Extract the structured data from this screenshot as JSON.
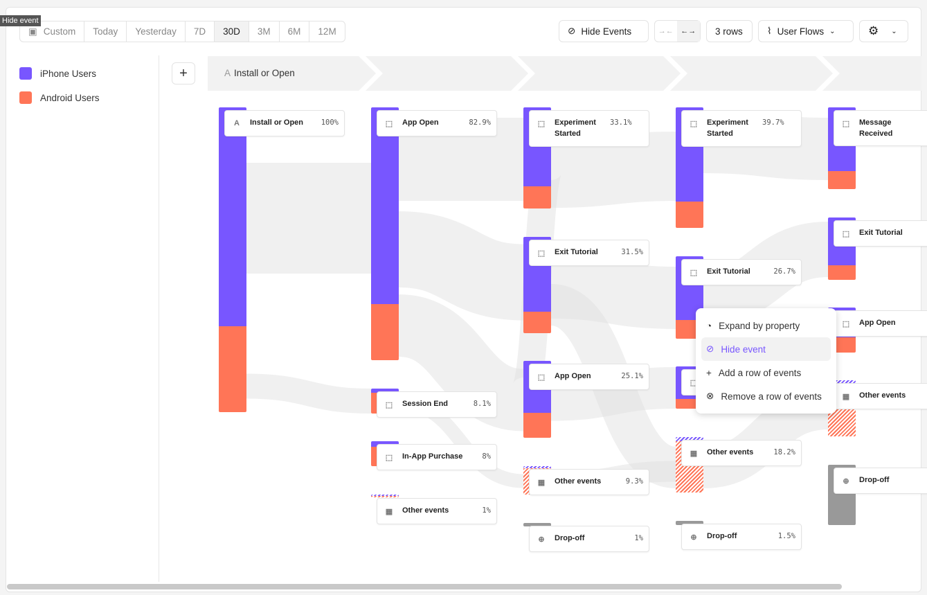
{
  "tooltip": "Hide event",
  "date_range": {
    "options": [
      "Custom",
      "Today",
      "Yesterday",
      "7D",
      "30D",
      "3M",
      "6M",
      "12M"
    ],
    "selected": "30D"
  },
  "toolbar": {
    "hide_events": "Hide Events",
    "rows": "3 rows",
    "view": "User Flows"
  },
  "legend": [
    {
      "label": "iPhone Users",
      "color": "#7856ff"
    },
    {
      "label": "Android Users",
      "color": "#ff7557"
    }
  ],
  "step": {
    "letter": "A",
    "label": "Install or Open"
  },
  "colors": {
    "iphone": "#7856ff",
    "android": "#ff7557",
    "dropoff": "#999999",
    "link": "#dddddd"
  },
  "nodes": [
    {
      "label": "Install or Open",
      "pct": "100%",
      "icon": "letter-a"
    },
    {
      "label": "App Open",
      "pct": "82.9%",
      "icon": "cursor"
    },
    {
      "label": "Session End",
      "pct": "8.1%",
      "icon": "cursor"
    },
    {
      "label": "In-App Purchase",
      "pct": "8%",
      "icon": "cursor"
    },
    {
      "label": "Other events",
      "pct": "1%",
      "icon": "grid"
    },
    {
      "label": "Experiment Started",
      "pct": "33.1%",
      "icon": "cursor"
    },
    {
      "label": "Exit Tutorial",
      "pct": "31.5%",
      "icon": "cursor"
    },
    {
      "label": "App Open",
      "pct": "25.1%",
      "icon": "cursor"
    },
    {
      "label": "Other events",
      "pct": "9.3%",
      "icon": "grid"
    },
    {
      "label": "Drop-off",
      "pct": "1%",
      "icon": "arrow-down"
    },
    {
      "label": "Experiment Started",
      "pct": "39.7%",
      "icon": "cursor"
    },
    {
      "label": "Exit Tutorial",
      "pct": "26.7%",
      "icon": "cursor"
    },
    {
      "label": "",
      "pct": "",
      "icon": "cursor"
    },
    {
      "label": "Other events",
      "pct": "18.2%",
      "icon": "grid"
    },
    {
      "label": "Drop-off",
      "pct": "1.5%",
      "icon": "arrow-down"
    },
    {
      "label": "Message Received",
      "pct": "",
      "icon": "cursor"
    },
    {
      "label": "Exit Tutorial",
      "pct": "",
      "icon": "cursor"
    },
    {
      "label": "App Open",
      "pct": "",
      "icon": "cursor"
    },
    {
      "label": "Other events",
      "pct": "",
      "icon": "grid"
    },
    {
      "label": "Drop-off",
      "pct": "",
      "icon": "arrow-down"
    }
  ],
  "context_menu": {
    "items": [
      {
        "label": "Expand by property",
        "icon": "expand-icon"
      },
      {
        "label": "Hide event",
        "icon": "eye-off-icon",
        "highlighted": true
      },
      {
        "label": "Add a row of events",
        "icon": "plus-icon"
      },
      {
        "label": "Remove a row of events",
        "icon": "x-circle-icon"
      }
    ]
  }
}
